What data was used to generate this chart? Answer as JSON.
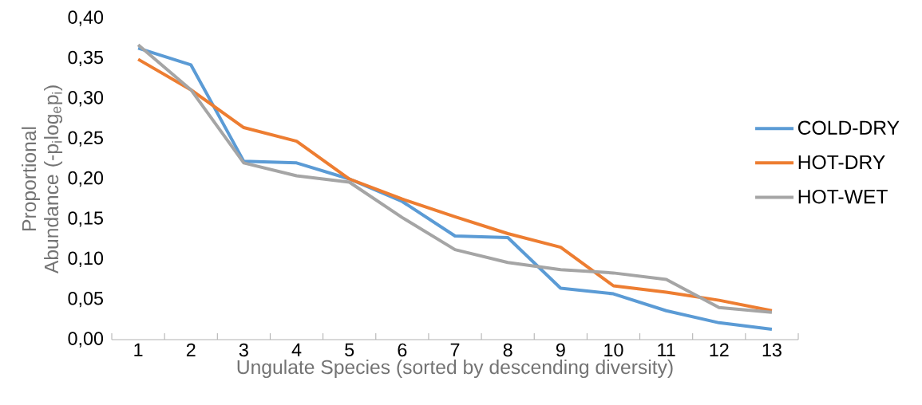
{
  "chart_data": {
    "type": "line",
    "xlabel": "Ungulate Species (sorted  by descending diversity)",
    "ylabel": "Proportional Abundance (-p$_{i}$log$_{e}$p$_{i}$)",
    "categories": [
      "1",
      "2",
      "3",
      "4",
      "5",
      "6",
      "7",
      "8",
      "9",
      "10",
      "11",
      "12",
      "13"
    ],
    "series": [
      {
        "name": "COLD-DRY",
        "color": "#5b9bd5",
        "values": [
          0.363,
          0.342,
          0.222,
          0.22,
          0.2,
          0.172,
          0.129,
          0.127,
          0.064,
          0.057,
          0.036,
          0.021,
          0.013
        ]
      },
      {
        "name": "HOT-DRY",
        "color": "#ed7d31",
        "values": [
          0.349,
          0.311,
          0.264,
          0.247,
          0.2,
          0.175,
          0.153,
          0.132,
          0.115,
          0.067,
          0.059,
          0.049,
          0.036
        ]
      },
      {
        "name": "HOT-WET",
        "color": "#a5a5a5",
        "values": [
          0.367,
          0.311,
          0.22,
          0.204,
          0.196,
          0.152,
          0.112,
          0.096,
          0.087,
          0.083,
          0.075,
          0.04,
          0.034
        ]
      }
    ],
    "ylim": [
      0,
      0.4
    ],
    "yticks": [
      {
        "value": 0,
        "label": "0,00"
      },
      {
        "value": 0.05,
        "label": "0,05"
      },
      {
        "value": 0.1,
        "label": "0,10"
      },
      {
        "value": 0.15,
        "label": "0,15"
      },
      {
        "value": 0.2,
        "label": "0,20"
      },
      {
        "value": 0.25,
        "label": "0,25"
      },
      {
        "value": 0.3,
        "label": "0,30"
      },
      {
        "value": 0.35,
        "label": "0,35"
      },
      {
        "value": 0.4,
        "label": "0,40"
      }
    ],
    "legend": "right",
    "marker": "none",
    "line_style": "solid",
    "grid": false
  }
}
